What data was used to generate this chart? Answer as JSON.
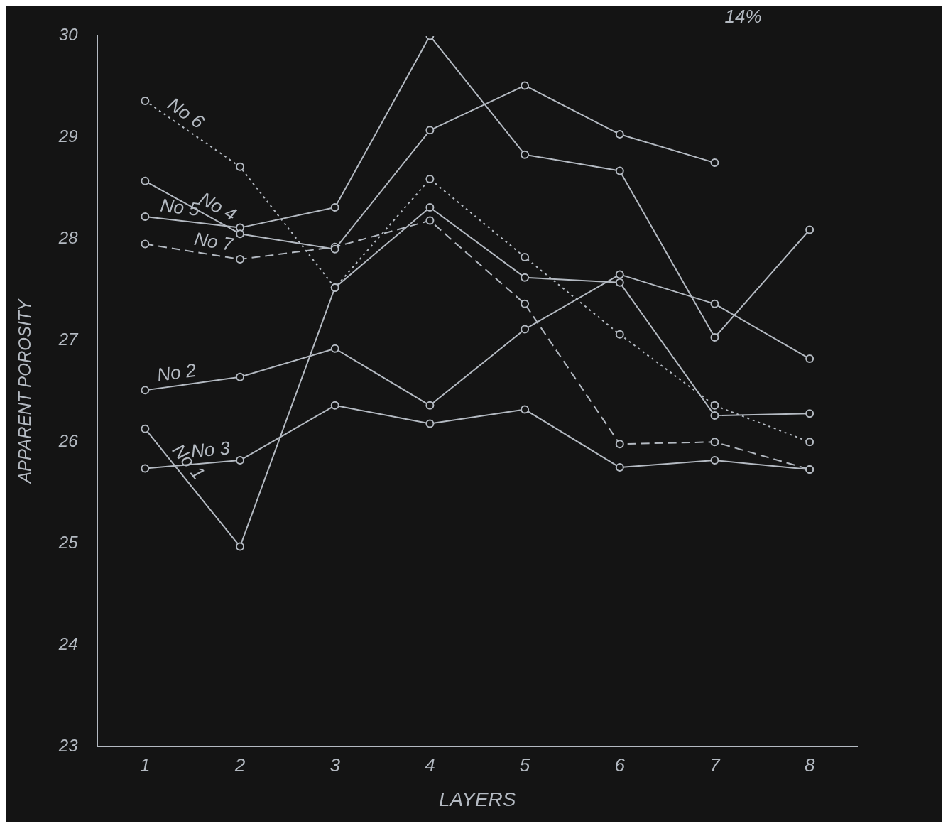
{
  "chart_data": {
    "type": "line",
    "xlabel": "LAYERS",
    "ylabel": "APPARENT POROSITY",
    "categories": [
      "1",
      "2",
      "3",
      "4",
      "5",
      "6",
      "7",
      "8"
    ],
    "ylim": [
      23,
      30
    ],
    "yticks": [
      23,
      24,
      25,
      26,
      27,
      28,
      29,
      30
    ],
    "grid": false,
    "legend": false,
    "marker": "circle",
    "annotations": [
      "14%"
    ],
    "series": [
      {
        "name": "No 6",
        "color": "#b4bac2",
        "line_style": "dotted",
        "values": [
          29.36,
          28.71,
          27.52,
          28.59,
          27.82,
          27.06,
          26.36,
          26.0
        ]
      },
      {
        "name": "No 4",
        "color": "#b4bac2",
        "line_style": "solid",
        "values": [
          28.57,
          28.05,
          27.9,
          29.07,
          29.51,
          29.03,
          28.75,
          null
        ]
      },
      {
        "name": "No 5",
        "color": "#b4bac2",
        "line_style": "solid",
        "values": [
          28.22,
          28.11,
          28.31,
          30.0,
          28.83,
          28.67,
          27.03,
          28.09
        ]
      },
      {
        "name": "No 7",
        "color": "#b4bac2",
        "line_style": "dashed",
        "values": [
          27.95,
          27.8,
          27.92,
          28.18,
          27.36,
          25.98,
          26.0,
          25.73
        ]
      },
      {
        "name": "No 2",
        "color": "#b4bac2",
        "line_style": "solid",
        "values": [
          26.51,
          26.64,
          26.92,
          26.36,
          27.11,
          27.65,
          27.36,
          26.82
        ]
      },
      {
        "name": "No 3",
        "color": "#b4bac2",
        "line_style": "solid",
        "values": [
          25.74,
          25.82,
          26.36,
          26.18,
          26.32,
          25.75,
          25.82,
          25.73
        ]
      },
      {
        "name": "No 1",
        "color": "#b4bac2",
        "line_style": "solid",
        "values": [
          26.13,
          24.97,
          27.52,
          28.31,
          27.62,
          27.57,
          26.26,
          26.28
        ]
      }
    ]
  }
}
